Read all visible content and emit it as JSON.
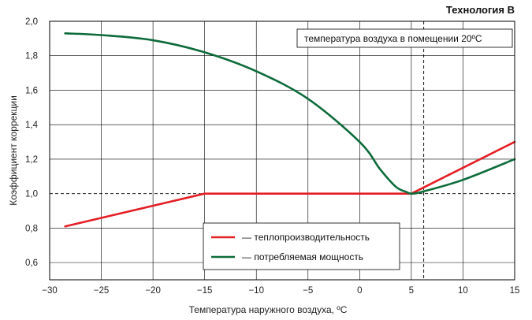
{
  "chart_data": {
    "type": "line",
    "title": "Технология B",
    "xlabel": "Температура наружного воздуха, ºС",
    "ylabel": "Коэффициент коррекции",
    "xlim": [
      -30,
      15
    ],
    "ylim": [
      0.5,
      2.0
    ],
    "x_ticks": [
      -30,
      -25,
      -20,
      -15,
      -10,
      -5,
      0,
      5,
      10,
      15
    ],
    "x_tick_labels": [
      "−30",
      "−25",
      "−20",
      "−15",
      "−10",
      "−5",
      "0",
      "5",
      "10",
      "15"
    ],
    "y_ticks": [
      0.6,
      0.8,
      1.0,
      1.2,
      1.4,
      1.6,
      1.8,
      2.0
    ],
    "y_tick_labels": [
      "0,6",
      "0,8",
      "1,0",
      "1,2",
      "1,4",
      "1,6",
      "1,8",
      "2,0"
    ],
    "grid": true,
    "annotation": "температура воздуха в помещении 20ºС",
    "reference_lines": {
      "horizontal_y": 1.0,
      "vertical_x": 6.2
    },
    "legend_position": "bottom-center",
    "series": [
      {
        "name": "— теплопроизводительность",
        "color": "#e31e24",
        "x": [
          -28.5,
          -15,
          5,
          15
        ],
        "y": [
          0.81,
          1.0,
          1.0,
          1.3
        ]
      },
      {
        "name": "— потребляемая мощность",
        "color": "#0d6b3a",
        "x": [
          -28.5,
          -25,
          -20,
          -15,
          -10,
          -5,
          0,
          2,
          3.5,
          4.5,
          5,
          6,
          10,
          15
        ],
        "y": [
          1.93,
          1.92,
          1.89,
          1.82,
          1.71,
          1.55,
          1.3,
          1.14,
          1.04,
          1.01,
          1.0,
          1.01,
          1.08,
          1.2
        ]
      }
    ]
  }
}
